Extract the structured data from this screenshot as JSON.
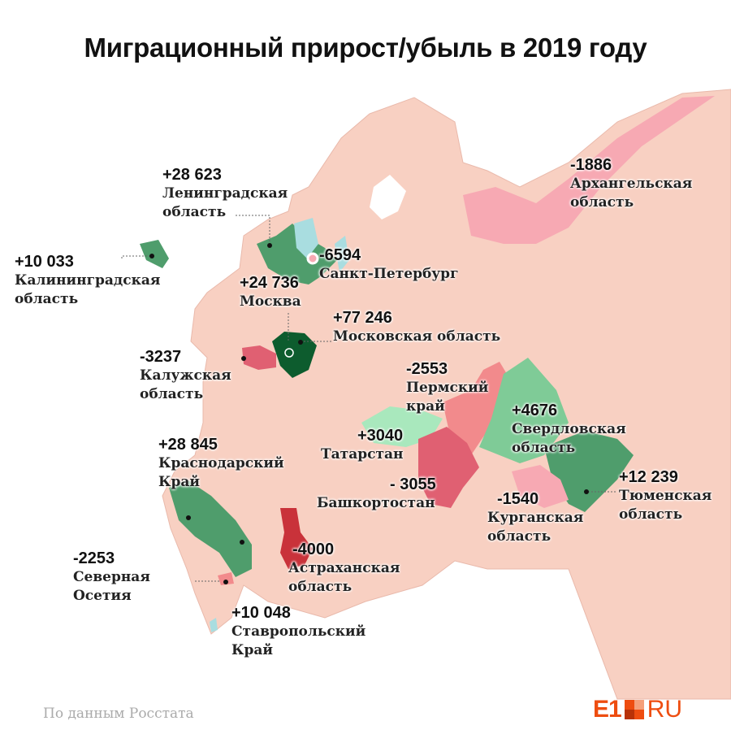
{
  "title": "Миграционный прирост/убыль в 2019 году",
  "colors": {
    "land": "#f8d0c2",
    "water": "#a9dde0",
    "gain_dark": "#0d5c2e",
    "gain": "#4f9d6c",
    "gain_light": "#7fcb97",
    "gain_pale": "#a9e8bd",
    "loss_dark": "#c9323a",
    "loss": "#e06072",
    "loss_light": "#f28a8c",
    "loss_pale": "#f7a9b3",
    "logo": "#ee4d10"
  },
  "regions": [
    {
      "value": "+28 623",
      "name": "Ленинградская",
      "name2": "область"
    },
    {
      "value": "+10 033",
      "name": "Калининградская",
      "name2": "область"
    },
    {
      "value": "-6594",
      "name": "Санкт-Петербург",
      "name2": ""
    },
    {
      "value": "+24 736",
      "name": "Москва",
      "name2": ""
    },
    {
      "value": "+77 246",
      "name": "Московская область",
      "name2": ""
    },
    {
      "value": "-3237",
      "name": "Калужская",
      "name2": "область"
    },
    {
      "value": "-1886",
      "name": "Архангельская",
      "name2": "область"
    },
    {
      "value": "-2553",
      "name": "Пермский",
      "name2": "край"
    },
    {
      "value": "+4676",
      "name": "Свердловская",
      "name2": "область"
    },
    {
      "value": "+3040",
      "name": "Татарстан",
      "name2": ""
    },
    {
      "value": "- 3055",
      "name": "Башкортостан",
      "name2": ""
    },
    {
      "value": "+12 239",
      "name": "Тюменская",
      "name2": "область"
    },
    {
      "value": "-1540",
      "name": "Курганская",
      "name2": "область"
    },
    {
      "value": "+28 845",
      "name": "Краснодарский",
      "name2": "Край"
    },
    {
      "value": "-4000",
      "name": "Астраханская",
      "name2": "область"
    },
    {
      "value": "-2253",
      "name": "Северная",
      "name2": "Осетия"
    },
    {
      "value": "+10 048",
      "name": "Ставропольский",
      "name2": "Край"
    }
  ],
  "source": "По данным Росстата",
  "logo": {
    "left": "E1",
    "right": "RU"
  }
}
